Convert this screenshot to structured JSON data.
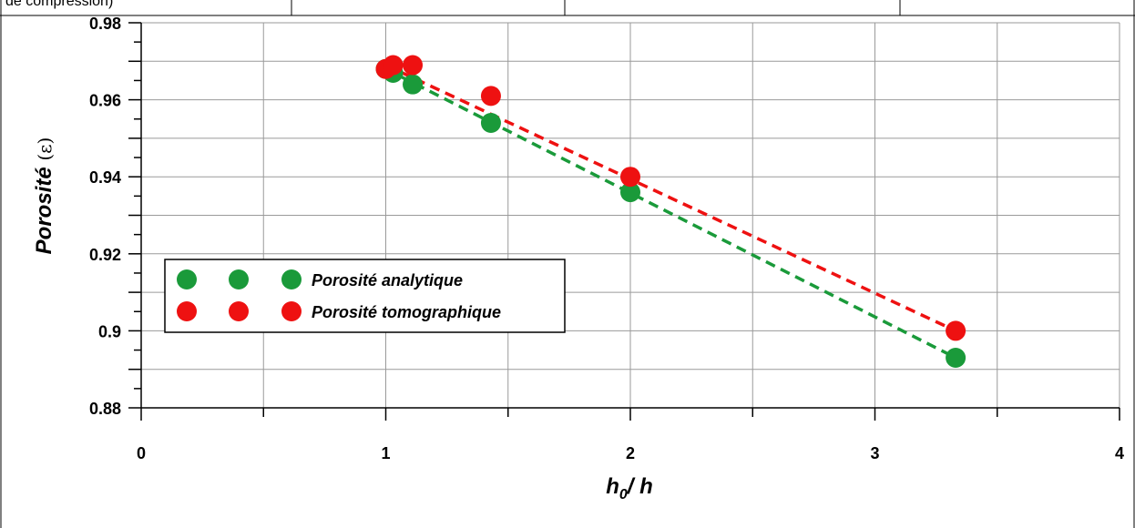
{
  "header_fragment": "de compression)",
  "chart_data": {
    "type": "scatter",
    "xlabel": "h0/ h",
    "xlabel_main": "h",
    "xlabel_sub": "0",
    "xlabel_rest": "/ h",
    "ylabel": "Porosité (ε)",
    "ylabel_main": "Porosité",
    "ylabel_symbol": "(ε)",
    "xlim": [
      0,
      4
    ],
    "ylim": [
      0.88,
      0.98
    ],
    "x_ticks": [
      0,
      1,
      2,
      3,
      4
    ],
    "x_tick_labels": [
      "0",
      "1",
      "2",
      "3",
      "4"
    ],
    "y_ticks": [
      0.88,
      0.9,
      0.92,
      0.94,
      0.96,
      0.98
    ],
    "y_tick_labels": [
      "0.88",
      "0.9",
      "0.92",
      "0.94",
      "0.96",
      "0.98"
    ],
    "grid": true,
    "legend_position": "lower-left",
    "series": [
      {
        "name": "Porosité analytique",
        "color": "#1a9a3a",
        "x": [
          1.0,
          1.03,
          1.11,
          1.43,
          2.0,
          3.33
        ],
        "y": [
          0.968,
          0.967,
          0.964,
          0.954,
          0.936,
          0.893
        ],
        "trend": [
          [
            1.0,
            0.968
          ],
          [
            3.33,
            0.893
          ]
        ]
      },
      {
        "name": "Porosité tomographique",
        "color": "#ee1111",
        "x": [
          1.0,
          1.03,
          1.11,
          1.43,
          2.0,
          3.33
        ],
        "y": [
          0.968,
          0.969,
          0.969,
          0.961,
          0.94,
          0.9
        ],
        "trend": [
          [
            1.0,
            0.969
          ],
          [
            3.33,
            0.9
          ]
        ]
      }
    ]
  }
}
